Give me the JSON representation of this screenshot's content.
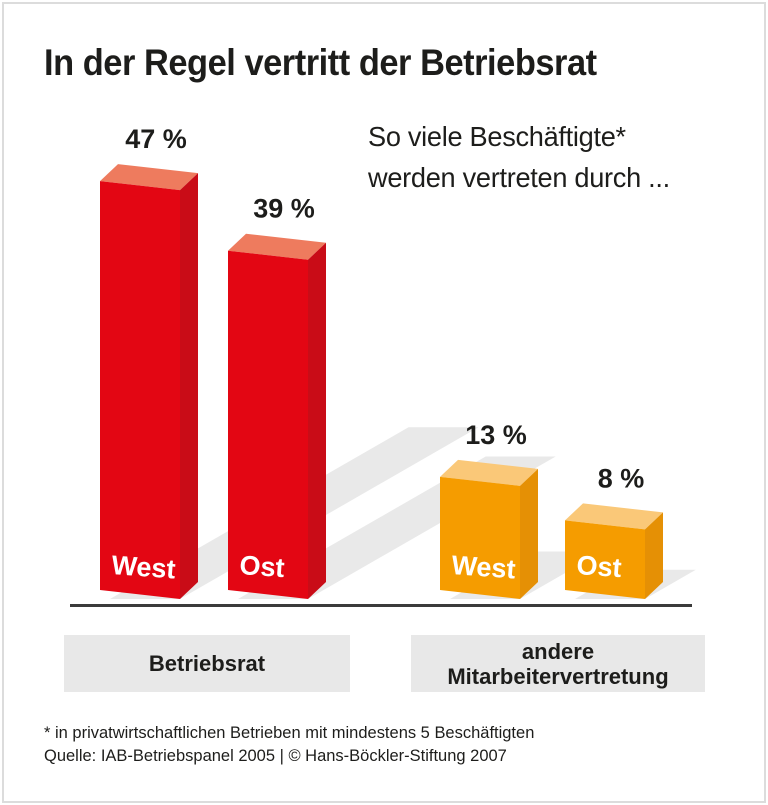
{
  "frame": {
    "background": "#ffffff",
    "border_color": "#dcdcdc"
  },
  "chart_data": {
    "type": "bar",
    "style": "3d-blocks",
    "title": "In der Regel vertritt der Betriebsrat",
    "subtitle_lines": [
      "So viele Beschäftigte*",
      "werden vertreten durch ..."
    ],
    "unit": "%",
    "ylim": [
      0,
      50
    ],
    "grid": false,
    "legend": "none",
    "groups": [
      {
        "label": "Betriebsrat",
        "colors": {
          "front": "#e30613",
          "top": "#ee7b5e",
          "side": "#c90c17"
        },
        "bars": [
          {
            "label": "West",
            "value": 47,
            "value_label": "47 %"
          },
          {
            "label": "Ost",
            "value": 39,
            "value_label": "39 %"
          }
        ]
      },
      {
        "label": "andere Mitarbeitervertretung",
        "colors": {
          "front": "#f59c00",
          "top": "#fac878",
          "side": "#e59005"
        },
        "bars": [
          {
            "label": "West",
            "value": 13,
            "value_label": "13 %"
          },
          {
            "label": "Ost",
            "value": 8,
            "value_label": "8 %"
          }
        ]
      }
    ],
    "footnote": "* in privatwirtschaftlichen Betrieben mit mindestens 5 Beschäftigten",
    "source": "Quelle: IAB-Betriebspanel 2005 | © Hans-Böckler-Stiftung 2007",
    "shadow_color": "#e9e9e9",
    "category_box_bg": "#e8e8e8",
    "baseline_color": "#3b3b3b",
    "text_color": "#1d1d1b",
    "bar_label_text_color": "#ffffff"
  }
}
